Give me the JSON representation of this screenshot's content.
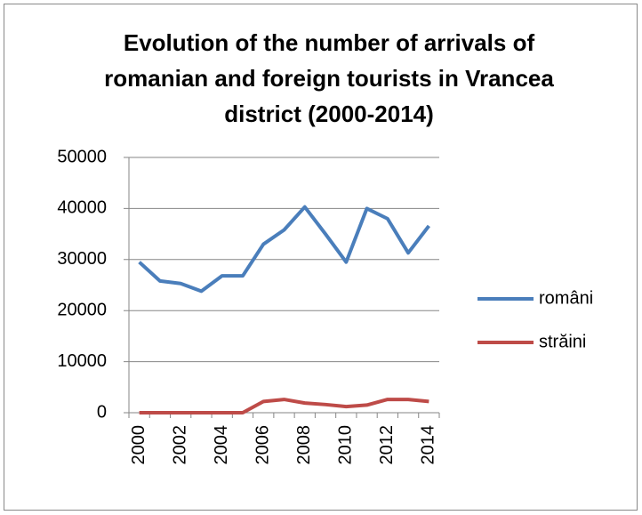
{
  "chart_data": {
    "type": "line",
    "title": "Evolution of the number of arrivals of romanian and foreign tourists in Vrancea district (2000-2014)",
    "categories": [
      "2000",
      null,
      "2002",
      null,
      "2004",
      null,
      "2006",
      null,
      "2008",
      null,
      "2010",
      null,
      "2012",
      null,
      "2014"
    ],
    "series": [
      {
        "name": "români",
        "color": "#4a7ebb",
        "values": [
          29500,
          25800,
          25300,
          23800,
          26800,
          26800,
          33000,
          35800,
          40300,
          35000,
          29500,
          40000,
          38000,
          31300,
          36600
        ]
      },
      {
        "name": "străini",
        "color": "#be4b48",
        "values": [
          0,
          0,
          0,
          0,
          0,
          0,
          2200,
          2600,
          1900,
          1600,
          1200,
          1500,
          2600,
          2600,
          2200
        ]
      }
    ],
    "ylim": [
      0,
      50000
    ],
    "yticks": [
      0,
      10000,
      20000,
      30000,
      40000,
      50000
    ],
    "grid": true,
    "legend": "right"
  }
}
